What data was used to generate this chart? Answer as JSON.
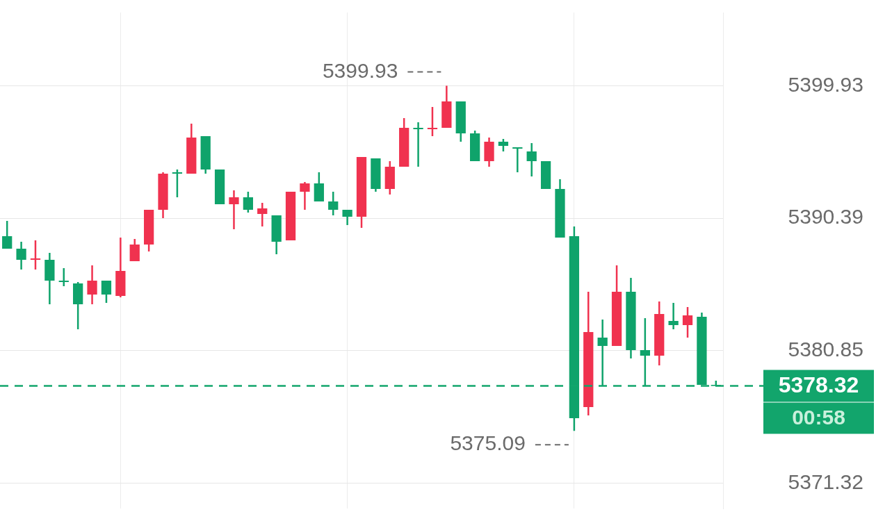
{
  "chart_data": {
    "type": "candlestick",
    "categories": [
      null,
      null,
      null,
      null,
      null,
      null,
      null,
      null,
      null,
      null,
      null,
      null,
      null,
      null,
      null,
      null,
      null,
      null,
      null,
      null,
      null,
      null,
      null,
      null,
      null,
      null,
      null,
      null,
      null,
      null,
      null,
      null,
      null,
      null,
      null,
      null,
      null,
      null,
      null,
      null,
      null,
      null,
      null,
      null,
      null,
      null,
      null,
      null,
      null,
      null,
      null
    ],
    "ohlc": [
      [
        5389.1,
        5390.2,
        5388.2,
        5388.2
      ],
      [
        5388.2,
        5388.7,
        5386.7,
        5387.4
      ],
      [
        5387.4,
        5388.8,
        5386.7,
        5387.5
      ],
      [
        5387.4,
        5387.9,
        5384.2,
        5385.9
      ],
      [
        5385.9,
        5386.8,
        5385.5,
        5385.8
      ],
      [
        5385.7,
        5385.8,
        5382.4,
        5384.2
      ],
      [
        5384.9,
        5387.0,
        5384.2,
        5385.9
      ],
      [
        5385.9,
        5385.9,
        5384.3,
        5384.9
      ],
      [
        5384.8,
        5389.0,
        5384.7,
        5386.6
      ],
      [
        5387.3,
        5388.9,
        5387.3,
        5388.5
      ],
      [
        5388.5,
        5391.0,
        5388.0,
        5391.0
      ],
      [
        5391.0,
        5393.7,
        5390.4,
        5393.6
      ],
      [
        5393.7,
        5393.9,
        5391.9,
        5393.6
      ],
      [
        5393.6,
        5397.2,
        5393.6,
        5396.2
      ],
      [
        5396.3,
        5396.3,
        5393.6,
        5393.9
      ],
      [
        5393.9,
        5393.9,
        5391.4,
        5391.4
      ],
      [
        5391.4,
        5392.4,
        5389.6,
        5391.9
      ],
      [
        5391.9,
        5392.3,
        5390.8,
        5391.0
      ],
      [
        5390.7,
        5391.5,
        5389.8,
        5391.1
      ],
      [
        5390.6,
        5390.6,
        5387.8,
        5388.7
      ],
      [
        5388.8,
        5392.3,
        5388.8,
        5392.3
      ],
      [
        5392.3,
        5393.0,
        5391.0,
        5392.9
      ],
      [
        5392.9,
        5393.7,
        5391.6,
        5391.6
      ],
      [
        5391.6,
        5392.3,
        5390.6,
        5391.0
      ],
      [
        5391.0,
        5391.0,
        5389.9,
        5390.5
      ],
      [
        5390.5,
        5394.8,
        5389.7,
        5394.8
      ],
      [
        5394.7,
        5394.7,
        5392.3,
        5392.5
      ],
      [
        5392.5,
        5394.5,
        5392.1,
        5394.1
      ],
      [
        5394.1,
        5397.6,
        5394.1,
        5396.9
      ],
      [
        5396.9,
        5397.3,
        5394.1,
        5396.8
      ],
      [
        5396.8,
        5398.4,
        5396.3,
        5396.9
      ],
      [
        5396.9,
        5399.93,
        5396.9,
        5398.8
      ],
      [
        5398.8,
        5398.8,
        5395.9,
        5396.5
      ],
      [
        5396.5,
        5396.7,
        5394.5,
        5394.5
      ],
      [
        5394.5,
        5396.2,
        5394.1,
        5395.9
      ],
      [
        5395.9,
        5396.1,
        5395.2,
        5395.6
      ],
      [
        5395.5,
        5395.5,
        5393.7,
        5395.4
      ],
      [
        5395.2,
        5395.8,
        5393.4,
        5394.5
      ],
      [
        5394.5,
        5394.5,
        5392.5,
        5392.5
      ],
      [
        5392.5,
        5393.2,
        5389.0,
        5389.0
      ],
      [
        5389.1,
        5389.8,
        5375.09,
        5376.0
      ],
      [
        5376.8,
        5385.1,
        5376.2,
        5382.2
      ],
      [
        5381.8,
        5383.1,
        5378.3,
        5381.2
      ],
      [
        5381.2,
        5387.0,
        5381.2,
        5385.1
      ],
      [
        5385.1,
        5386.1,
        5380.3,
        5380.9
      ],
      [
        5380.9,
        5383.2,
        5378.3,
        5380.5
      ],
      [
        5380.5,
        5384.4,
        5379.8,
        5383.5
      ],
      [
        5383.0,
        5384.3,
        5382.4,
        5382.7
      ],
      [
        5382.7,
        5384.0,
        5381.8,
        5383.4
      ],
      [
        5383.3,
        5383.6,
        5378.4,
        5378.4
      ],
      [
        5378.4,
        5378.7,
        5378.32,
        5378.32
      ]
    ],
    "colors": [
      "#0fa36b",
      "#0fa36b",
      "#f0324f",
      "#0fa36b",
      "#0fa36b",
      "#0fa36b",
      "#f0324f",
      "#0fa36b",
      "#f0324f",
      "#f0324f",
      "#f0324f",
      "#f0324f",
      "#0fa36b",
      "#f0324f",
      "#0fa36b",
      "#0fa36b",
      "#f0324f",
      "#0fa36b",
      "#f0324f",
      "#0fa36b",
      "#f0324f",
      "#f0324f",
      "#0fa36b",
      "#0fa36b",
      "#0fa36b",
      "#f0324f",
      "#0fa36b",
      "#f0324f",
      "#f0324f",
      "#0fa36b",
      "#f0324f",
      "#f0324f",
      "#0fa36b",
      "#0fa36b",
      "#f0324f",
      "#0fa36b",
      "#0fa36b",
      "#0fa36b",
      "#0fa36b",
      "#0fa36b",
      "#0fa36b",
      "#f0324f",
      "#0fa36b",
      "#f0324f",
      "#0fa36b",
      "#0fa36b",
      "#f0324f",
      "#0fa36b",
      "#f0324f",
      "#0fa36b",
      "#0fa36b"
    ],
    "ylim": [
      5369.5,
      5405.2
    ],
    "yticks": [
      5399.93,
      5390.39,
      5380.85,
      5371.32
    ],
    "grid": true,
    "legend": false,
    "ref_lines": [
      {
        "axis": "y",
        "value": 5378.32,
        "label": "5378.32",
        "color": "#12a56c",
        "line_style": "dashed"
      }
    ],
    "annotations": [
      "5399.93",
      "5375.09",
      "00:58"
    ]
  }
}
